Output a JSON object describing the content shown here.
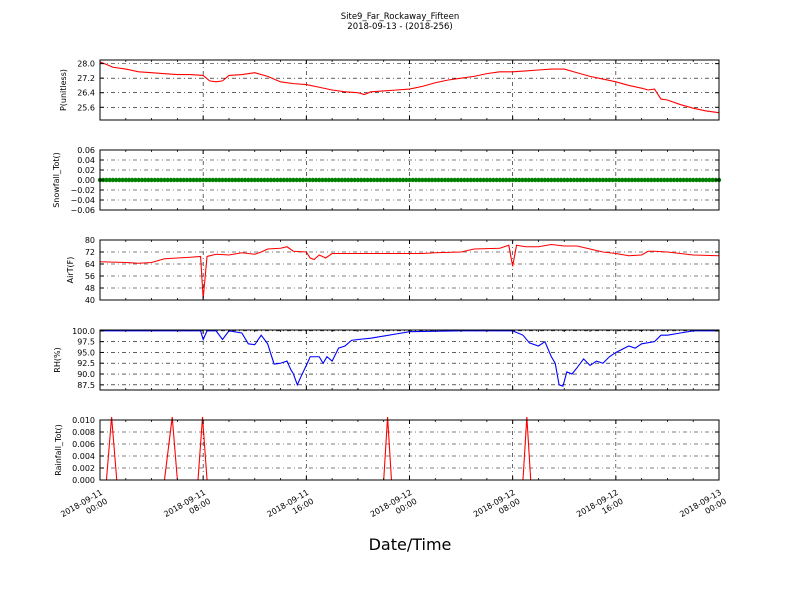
{
  "title": {
    "line1": "Site9_Far_Rockaway_Fifteen",
    "line2": "2018-09-13 - (2018-256)"
  },
  "xlabel": "Date/Time",
  "x_ticks": [
    {
      "line1": "2018-09-11",
      "line2": "00:00",
      "hours": 0
    },
    {
      "line1": "2018-09-11",
      "line2": "08:00",
      "hours": 8
    },
    {
      "line1": "2018-09-11",
      "line2": "16:00",
      "hours": 16
    },
    {
      "line1": "2018-09-12",
      "line2": "00:00",
      "hours": 24
    },
    {
      "line1": "2018-09-12",
      "line2": "08:00",
      "hours": 32
    },
    {
      "line1": "2018-09-12",
      "line2": "16:00",
      "hours": 40
    },
    {
      "line1": "2018-09-13",
      "line2": "00:00",
      "hours": 48
    }
  ],
  "colors": {
    "red": "#ff0000",
    "green": "#008000",
    "blue": "#0000ff",
    "axis": "#000000"
  },
  "chart_data": [
    {
      "type": "line",
      "ylabel": "P(unitless)",
      "ylim": [
        24.9,
        28.2
      ],
      "yticks": [
        "28.0",
        "27.2",
        "26.4",
        "25.6"
      ],
      "color": "#ff0000",
      "grid": true,
      "points": [
        [
          0,
          28.1
        ],
        [
          0.5,
          27.95
        ],
        [
          1,
          27.8
        ],
        [
          2,
          27.7
        ],
        [
          3,
          27.55
        ],
        [
          4,
          27.5
        ],
        [
          5,
          27.45
        ],
        [
          6,
          27.4
        ],
        [
          7,
          27.4
        ],
        [
          8,
          27.35
        ],
        [
          8.5,
          27.05
        ],
        [
          9,
          27.0
        ],
        [
          9.5,
          27.05
        ],
        [
          10,
          27.35
        ],
        [
          11,
          27.4
        ],
        [
          12,
          27.5
        ],
        [
          13,
          27.3
        ],
        [
          14,
          27.0
        ],
        [
          15,
          26.9
        ],
        [
          16,
          26.85
        ],
        [
          17,
          26.7
        ],
        [
          18,
          26.55
        ],
        [
          19,
          26.45
        ],
        [
          20,
          26.4
        ],
        [
          20.5,
          26.3
        ],
        [
          21,
          26.45
        ],
        [
          22,
          26.5
        ],
        [
          23,
          26.55
        ],
        [
          24,
          26.6
        ],
        [
          25,
          26.75
        ],
        [
          26,
          26.95
        ],
        [
          27,
          27.1
        ],
        [
          28,
          27.2
        ],
        [
          29,
          27.3
        ],
        [
          30,
          27.45
        ],
        [
          31,
          27.55
        ],
        [
          32,
          27.55
        ],
        [
          33,
          27.6
        ],
        [
          34,
          27.65
        ],
        [
          35,
          27.7
        ],
        [
          36,
          27.7
        ],
        [
          37,
          27.5
        ],
        [
          38,
          27.3
        ],
        [
          39,
          27.15
        ],
        [
          40,
          27.0
        ],
        [
          41,
          26.8
        ],
        [
          42,
          26.65
        ],
        [
          42.5,
          26.55
        ],
        [
          43,
          26.6
        ],
        [
          43.5,
          26.05
        ],
        [
          44,
          26.0
        ],
        [
          45,
          25.75
        ],
        [
          46,
          25.55
        ],
        [
          47,
          25.4
        ],
        [
          48,
          25.3
        ]
      ]
    },
    {
      "type": "scatter",
      "ylabel": "Snowfall_Tot()",
      "ylim": [
        -0.06,
        0.06
      ],
      "yticks": [
        "0.06",
        "0.04",
        "0.02",
        "0.00",
        "−0.02",
        "−0.04",
        "−0.06"
      ],
      "color": "#008000",
      "grid": true,
      "constant_value": 0.0,
      "interval_hours": 0.25
    },
    {
      "type": "line",
      "ylabel": "AirT(F)",
      "ylim": [
        40,
        80
      ],
      "yticks": [
        "80",
        "72",
        "64",
        "56",
        "48",
        "40"
      ],
      "color": "#ff0000",
      "grid": true,
      "points": [
        [
          0,
          65.5
        ],
        [
          2,
          65
        ],
        [
          3,
          64.5
        ],
        [
          4,
          65
        ],
        [
          5,
          67.5
        ],
        [
          6,
          68
        ],
        [
          7,
          68.5
        ],
        [
          7.8,
          69
        ],
        [
          8,
          41
        ],
        [
          8.3,
          69
        ],
        [
          9,
          70.5
        ],
        [
          10,
          70
        ],
        [
          11,
          71.5
        ],
        [
          12,
          70.5
        ],
        [
          12.5,
          72
        ],
        [
          13,
          74
        ],
        [
          14,
          74.5
        ],
        [
          14.5,
          75.5
        ],
        [
          15,
          72.5
        ],
        [
          16,
          72
        ],
        [
          16.3,
          68
        ],
        [
          16.6,
          67
        ],
        [
          17,
          70
        ],
        [
          17.5,
          68
        ],
        [
          18,
          71
        ],
        [
          20,
          71
        ],
        [
          22,
          71
        ],
        [
          24,
          71
        ],
        [
          25,
          71
        ],
        [
          26,
          71.5
        ],
        [
          28,
          72
        ],
        [
          29,
          74
        ],
        [
          31,
          74.5
        ],
        [
          31.7,
          76.5
        ],
        [
          32,
          62.5
        ],
        [
          32.3,
          76.5
        ],
        [
          33,
          75.5
        ],
        [
          34,
          75.5
        ],
        [
          35,
          77
        ],
        [
          36,
          76
        ],
        [
          37,
          76
        ],
        [
          38,
          74
        ],
        [
          39,
          72
        ],
        [
          40,
          71
        ],
        [
          41,
          69.5
        ],
        [
          42,
          70
        ],
        [
          42.5,
          72.5
        ],
        [
          43,
          72.5
        ],
        [
          44,
          72
        ],
        [
          45,
          71
        ],
        [
          46,
          70
        ],
        [
          48,
          69.5
        ]
      ]
    },
    {
      "type": "line",
      "ylabel": "RH(%)",
      "ylim": [
        86.3,
        100.2
      ],
      "yticks": [
        "100.0",
        "97.5",
        "95.0",
        "92.5",
        "90.0",
        "87.5"
      ],
      "color": "#0000ff",
      "grid": true,
      "points": [
        [
          0,
          100
        ],
        [
          4,
          100
        ],
        [
          6,
          100
        ],
        [
          7.8,
          100
        ],
        [
          8,
          98
        ],
        [
          8.3,
          100
        ],
        [
          9,
          100
        ],
        [
          9.5,
          98
        ],
        [
          10,
          100
        ],
        [
          11,
          99.5
        ],
        [
          11.5,
          97
        ],
        [
          12,
          96.8
        ],
        [
          12.5,
          99
        ],
        [
          13,
          97
        ],
        [
          13.5,
          92.3
        ],
        [
          14,
          92.5
        ],
        [
          14.5,
          93
        ],
        [
          14.8,
          91
        ],
        [
          15,
          90
        ],
        [
          15.3,
          87.5
        ],
        [
          15.6,
          89.5
        ],
        [
          16,
          92
        ],
        [
          16.3,
          94
        ],
        [
          17,
          94
        ],
        [
          17.3,
          92.5
        ],
        [
          17.6,
          94
        ],
        [
          18,
          93
        ],
        [
          18.5,
          96
        ],
        [
          19,
          96.5
        ],
        [
          19.5,
          97.8
        ],
        [
          20,
          98
        ],
        [
          21,
          98.3
        ],
        [
          22,
          98.8
        ],
        [
          23,
          99.3
        ],
        [
          24,
          99.8
        ],
        [
          28,
          100
        ],
        [
          32,
          100
        ],
        [
          32.8,
          99
        ],
        [
          33.3,
          97.2
        ],
        [
          34,
          96.5
        ],
        [
          34.5,
          97.5
        ],
        [
          35,
          94
        ],
        [
          35.3,
          92.5
        ],
        [
          35.6,
          87.5
        ],
        [
          35.9,
          87.2
        ],
        [
          36.2,
          90.5
        ],
        [
          36.6,
          90
        ],
        [
          37,
          91.5
        ],
        [
          37.5,
          93.5
        ],
        [
          38,
          92
        ],
        [
          38.5,
          93
        ],
        [
          39,
          92.5
        ],
        [
          39.5,
          94
        ],
        [
          40,
          95
        ],
        [
          41,
          96.5
        ],
        [
          41.5,
          96
        ],
        [
          42,
          97
        ],
        [
          43,
          97.5
        ],
        [
          43.5,
          99
        ],
        [
          44,
          99
        ],
        [
          45,
          99.5
        ],
        [
          46,
          100
        ],
        [
          48,
          100
        ]
      ]
    },
    {
      "type": "line",
      "ylabel": "Rainfall_Tot()",
      "ylim": [
        0.0,
        0.01
      ],
      "yticks": [
        "0.010",
        "0.008",
        "0.006",
        "0.004",
        "0.002",
        "0.000"
      ],
      "color": "#ff0000",
      "grid": true,
      "points": [
        [
          0,
          0
        ],
        [
          0.5,
          0
        ],
        [
          0.9,
          0.0105
        ],
        [
          1.3,
          0
        ],
        [
          5,
          0
        ],
        [
          5.6,
          0.0105
        ],
        [
          6,
          0
        ],
        [
          7.6,
          0
        ],
        [
          7.95,
          0.0105
        ],
        [
          8.3,
          0
        ],
        [
          22,
          0
        ],
        [
          22.3,
          0.0105
        ],
        [
          22.6,
          0
        ],
        [
          32.8,
          0
        ],
        [
          33.1,
          0.0105
        ],
        [
          33.4,
          0
        ],
        [
          48,
          0
        ]
      ]
    }
  ]
}
